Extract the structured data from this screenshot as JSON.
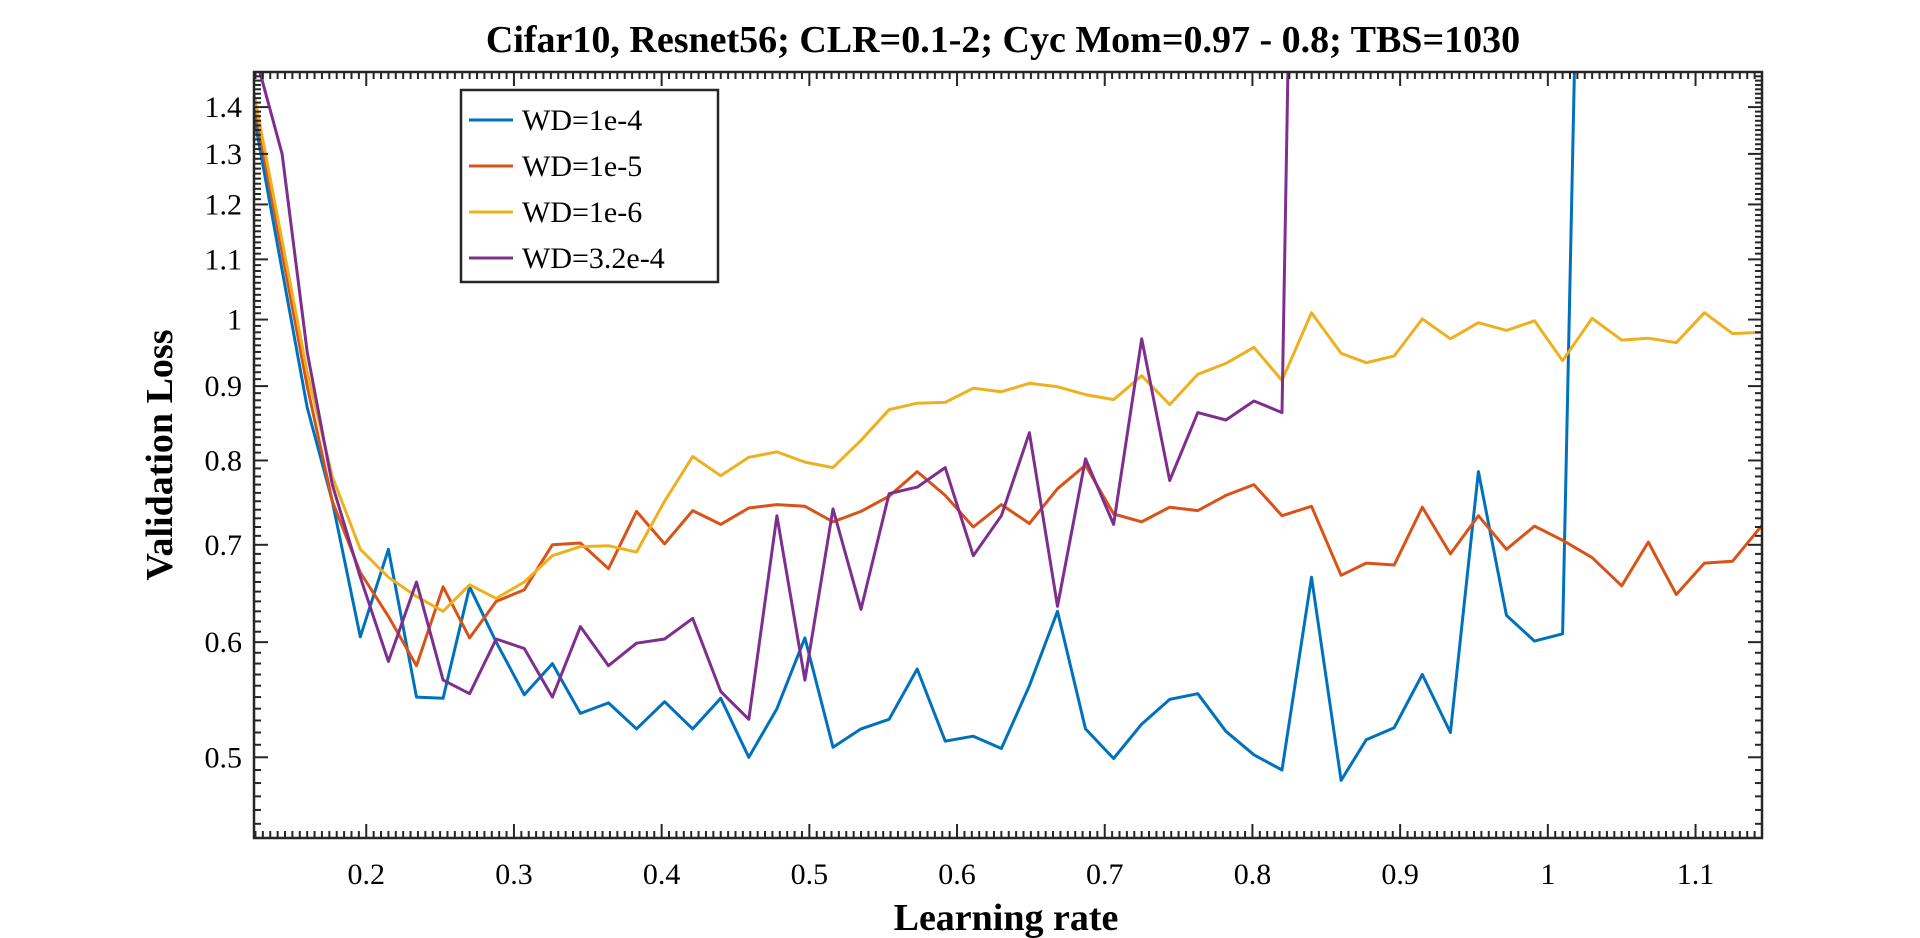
{
  "chart_data": {
    "type": "line",
    "title": "Cifar10, Resnet56; CLR=0.1-2; Cyc Mom=0.97 - 0.8; TBS=1030",
    "xlabel": "Learning rate",
    "ylabel": "Validation Loss",
    "xlim": [
      0.124,
      1.145
    ],
    "ylim": [
      0.44,
      1.48
    ],
    "yscale": "log",
    "grid": false,
    "legend_position": "top-left",
    "x_ticks": [
      0.2,
      0.3,
      0.4,
      0.5,
      0.6,
      0.7,
      0.8,
      0.9,
      1,
      1.1
    ],
    "x_tick_labels": [
      "0.2",
      "0.3",
      "0.4",
      "0.5",
      "0.6",
      "0.7",
      "0.8",
      "0.9",
      "1",
      "1.1"
    ],
    "y_ticks": [
      0.5,
      0.6,
      0.7,
      0.8,
      0.9,
      1,
      1.1,
      1.2,
      1.3,
      1.4
    ],
    "y_tick_labels": [
      "0.5",
      "0.6",
      "0.7",
      "0.8",
      "0.9",
      "1",
      "1.1",
      "1.2",
      "1.3",
      "1.4"
    ],
    "series": [
      {
        "name": "WD=1e-4",
        "color": "#0072BD",
        "points": [
          [
            0.124,
            1.38
          ],
          [
            0.16,
            0.87
          ],
          [
            0.177,
            0.75
          ],
          [
            0.196,
            0.605
          ],
          [
            0.215,
            0.695
          ],
          [
            0.234,
            0.55
          ],
          [
            0.252,
            0.549
          ],
          [
            0.27,
            0.655
          ],
          [
            0.288,
            0.6
          ],
          [
            0.307,
            0.552
          ],
          [
            0.326,
            0.58
          ],
          [
            0.345,
            0.536
          ],
          [
            0.364,
            0.545
          ],
          [
            0.383,
            0.523
          ],
          [
            0.402,
            0.546
          ],
          [
            0.421,
            0.523
          ],
          [
            0.44,
            0.549
          ],
          [
            0.459,
            0.5
          ],
          [
            0.478,
            0.54
          ],
          [
            0.497,
            0.604
          ],
          [
            0.516,
            0.508
          ],
          [
            0.535,
            0.523
          ],
          [
            0.554,
            0.531
          ],
          [
            0.573,
            0.575
          ],
          [
            0.592,
            0.513
          ],
          [
            0.611,
            0.517
          ],
          [
            0.63,
            0.507
          ],
          [
            0.649,
            0.56
          ],
          [
            0.668,
            0.63
          ],
          [
            0.687,
            0.523
          ],
          [
            0.706,
            0.499
          ],
          [
            0.725,
            0.527
          ],
          [
            0.744,
            0.548
          ],
          [
            0.763,
            0.553
          ],
          [
            0.782,
            0.521
          ],
          [
            0.801,
            0.502
          ],
          [
            0.82,
            0.49
          ],
          [
            0.84,
            0.665
          ],
          [
            0.86,
            0.482
          ],
          [
            0.877,
            0.514
          ],
          [
            0.896,
            0.524
          ],
          [
            0.915,
            0.57
          ],
          [
            0.934,
            0.52
          ],
          [
            0.953,
            0.786
          ],
          [
            0.972,
            0.626
          ],
          [
            0.991,
            0.601
          ],
          [
            1.01,
            0.608
          ],
          [
            1.018,
            1.48
          ]
        ]
      },
      {
        "name": "WD=1e-5",
        "color": "#D95319",
        "points": [
          [
            0.124,
            1.41
          ],
          [
            0.16,
            0.9
          ],
          [
            0.177,
            0.75
          ],
          [
            0.196,
            0.67
          ],
          [
            0.215,
            0.625
          ],
          [
            0.234,
            0.578
          ],
          [
            0.252,
            0.655
          ],
          [
            0.27,
            0.604
          ],
          [
            0.288,
            0.64
          ],
          [
            0.307,
            0.652
          ],
          [
            0.326,
            0.7
          ],
          [
            0.345,
            0.702
          ],
          [
            0.364,
            0.674
          ],
          [
            0.383,
            0.738
          ],
          [
            0.402,
            0.701
          ],
          [
            0.421,
            0.739
          ],
          [
            0.44,
            0.723
          ],
          [
            0.459,
            0.742
          ],
          [
            0.478,
            0.746
          ],
          [
            0.497,
            0.744
          ],
          [
            0.516,
            0.726
          ],
          [
            0.535,
            0.738
          ],
          [
            0.554,
            0.756
          ],
          [
            0.573,
            0.786
          ],
          [
            0.592,
            0.757
          ],
          [
            0.611,
            0.72
          ],
          [
            0.63,
            0.746
          ],
          [
            0.649,
            0.724
          ],
          [
            0.668,
            0.765
          ],
          [
            0.687,
            0.794
          ],
          [
            0.706,
            0.735
          ],
          [
            0.725,
            0.726
          ],
          [
            0.744,
            0.743
          ],
          [
            0.763,
            0.739
          ],
          [
            0.782,
            0.757
          ],
          [
            0.801,
            0.77
          ],
          [
            0.82,
            0.733
          ],
          [
            0.84,
            0.744
          ],
          [
            0.86,
            0.667
          ],
          [
            0.877,
            0.68
          ],
          [
            0.896,
            0.678
          ],
          [
            0.915,
            0.743
          ],
          [
            0.934,
            0.69
          ],
          [
            0.953,
            0.733
          ],
          [
            0.972,
            0.695
          ],
          [
            0.991,
            0.721
          ],
          [
            1.01,
            0.705
          ],
          [
            1.03,
            0.686
          ],
          [
            1.05,
            0.656
          ],
          [
            1.068,
            0.703
          ],
          [
            1.087,
            0.647
          ],
          [
            1.106,
            0.68
          ],
          [
            1.125,
            0.682
          ],
          [
            1.145,
            0.722
          ]
        ]
      },
      {
        "name": "WD=1e-6",
        "color": "#EDB120",
        "points": [
          [
            0.124,
            1.43
          ],
          [
            0.16,
            0.92
          ],
          [
            0.177,
            0.78
          ],
          [
            0.196,
            0.695
          ],
          [
            0.215,
            0.665
          ],
          [
            0.234,
            0.645
          ],
          [
            0.252,
            0.63
          ],
          [
            0.27,
            0.657
          ],
          [
            0.288,
            0.643
          ],
          [
            0.307,
            0.66
          ],
          [
            0.326,
            0.688
          ],
          [
            0.345,
            0.698
          ],
          [
            0.364,
            0.699
          ],
          [
            0.383,
            0.692
          ],
          [
            0.402,
            0.75
          ],
          [
            0.421,
            0.805
          ],
          [
            0.44,
            0.781
          ],
          [
            0.459,
            0.804
          ],
          [
            0.478,
            0.811
          ],
          [
            0.497,
            0.798
          ],
          [
            0.516,
            0.791
          ],
          [
            0.535,
            0.826
          ],
          [
            0.554,
            0.867
          ],
          [
            0.573,
            0.876
          ],
          [
            0.592,
            0.877
          ],
          [
            0.611,
            0.897
          ],
          [
            0.63,
            0.892
          ],
          [
            0.649,
            0.904
          ],
          [
            0.668,
            0.899
          ],
          [
            0.687,
            0.888
          ],
          [
            0.706,
            0.881
          ],
          [
            0.725,
            0.915
          ],
          [
            0.744,
            0.874
          ],
          [
            0.763,
            0.917
          ],
          [
            0.782,
            0.933
          ],
          [
            0.801,
            0.957
          ],
          [
            0.82,
            0.908
          ],
          [
            0.84,
            1.011
          ],
          [
            0.86,
            0.948
          ],
          [
            0.877,
            0.934
          ],
          [
            0.896,
            0.944
          ],
          [
            0.915,
            1.001
          ],
          [
            0.934,
            0.97
          ],
          [
            0.953,
            0.995
          ],
          [
            0.972,
            0.983
          ],
          [
            0.991,
            0.998
          ],
          [
            1.01,
            0.937
          ],
          [
            1.03,
            1.002
          ],
          [
            1.05,
            0.968
          ],
          [
            1.068,
            0.971
          ],
          [
            1.087,
            0.964
          ],
          [
            1.106,
            1.011
          ],
          [
            1.125,
            0.978
          ],
          [
            1.145,
            0.98
          ]
        ]
      },
      {
        "name": "WD=3.2e-4",
        "color": "#7E2F8E",
        "points": [
          [
            0.128,
            1.48
          ],
          [
            0.143,
            1.3
          ],
          [
            0.16,
            0.95
          ],
          [
            0.177,
            0.77
          ],
          [
            0.196,
            0.665
          ],
          [
            0.215,
            0.582
          ],
          [
            0.234,
            0.66
          ],
          [
            0.252,
            0.565
          ],
          [
            0.27,
            0.553
          ],
          [
            0.288,
            0.603
          ],
          [
            0.307,
            0.594
          ],
          [
            0.326,
            0.55
          ],
          [
            0.345,
            0.615
          ],
          [
            0.364,
            0.578
          ],
          [
            0.383,
            0.599
          ],
          [
            0.402,
            0.603
          ],
          [
            0.421,
            0.623
          ],
          [
            0.44,
            0.555
          ],
          [
            0.459,
            0.531
          ],
          [
            0.478,
            0.733
          ],
          [
            0.497,
            0.565
          ],
          [
            0.516,
            0.741
          ],
          [
            0.535,
            0.632
          ],
          [
            0.554,
            0.759
          ],
          [
            0.573,
            0.767
          ],
          [
            0.592,
            0.791
          ],
          [
            0.611,
            0.688
          ],
          [
            0.63,
            0.733
          ],
          [
            0.649,
            0.836
          ],
          [
            0.668,
            0.635
          ],
          [
            0.687,
            0.802
          ],
          [
            0.706,
            0.723
          ],
          [
            0.725,
            0.97
          ],
          [
            0.744,
            0.775
          ],
          [
            0.763,
            0.863
          ],
          [
            0.782,
            0.853
          ],
          [
            0.801,
            0.879
          ],
          [
            0.82,
            0.863
          ],
          [
            0.824,
            1.48
          ]
        ]
      }
    ]
  }
}
